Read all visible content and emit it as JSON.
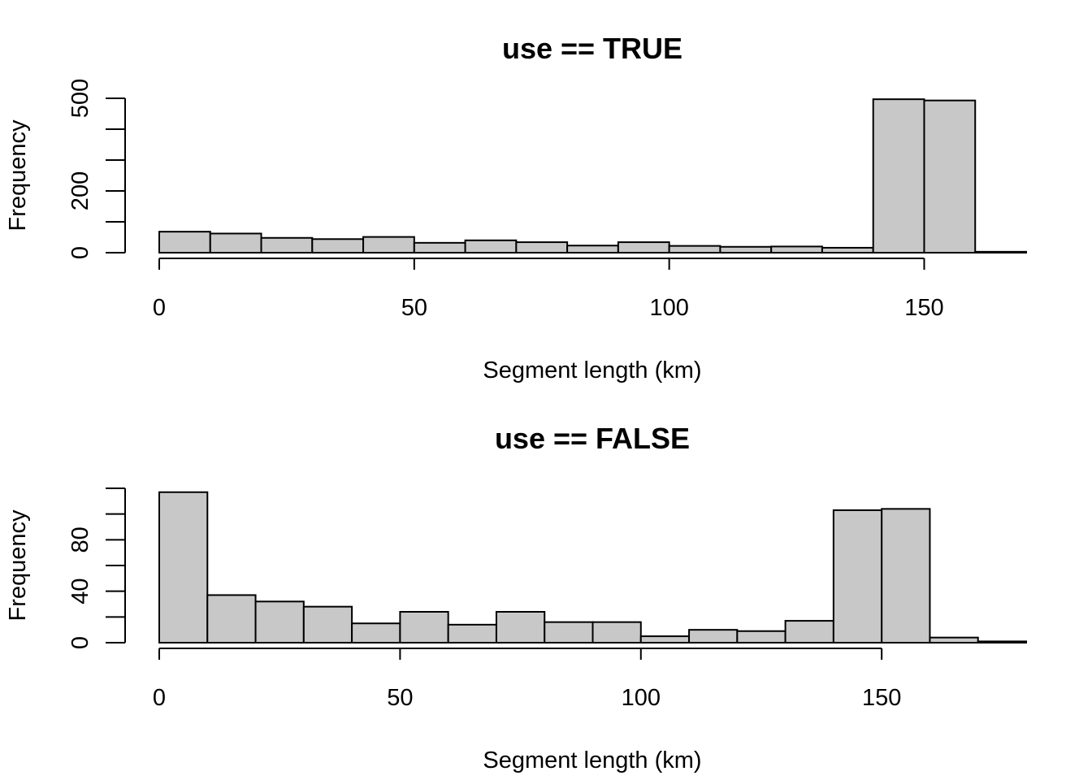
{
  "chart_data": [
    {
      "type": "bar",
      "title": "use == TRUE",
      "xlabel": "Segment length (km)",
      "ylabel": "Frequency",
      "bin_edges": [
        0,
        10,
        20,
        30,
        40,
        50,
        60,
        70,
        80,
        90,
        100,
        110,
        120,
        130,
        140,
        150,
        160,
        170
      ],
      "values": [
        68,
        62,
        48,
        44,
        51,
        32,
        40,
        34,
        23,
        34,
        22,
        19,
        20,
        16,
        497,
        493,
        3
      ],
      "xlim": [
        0,
        170
      ],
      "ylim": [
        0,
        500
      ],
      "x_ticks": [
        0,
        50,
        100,
        150
      ],
      "x_tick_labels": [
        "0",
        "50",
        "100",
        "150"
      ],
      "y_ticks": [
        0,
        100,
        200,
        300,
        400,
        500
      ],
      "y_tick_labels": [
        "0",
        "",
        "200",
        "",
        "",
        "500"
      ],
      "bar_color": "#c8c8c8",
      "grid": false
    },
    {
      "type": "bar",
      "title": "use == FALSE",
      "xlabel": "Segment length (km)",
      "ylabel": "Frequency",
      "bin_edges": [
        0,
        10,
        20,
        30,
        40,
        50,
        60,
        70,
        80,
        90,
        100,
        110,
        120,
        130,
        140,
        150,
        160,
        170,
        180
      ],
      "values": [
        117,
        37,
        32,
        28,
        15,
        24,
        14,
        24,
        16,
        16,
        5,
        10,
        9,
        17,
        103,
        104,
        4,
        1
      ],
      "xlim": [
        0,
        180
      ],
      "ylim": [
        0,
        120
      ],
      "x_ticks": [
        0,
        50,
        100,
        150
      ],
      "x_tick_labels": [
        "0",
        "50",
        "100",
        "150"
      ],
      "y_ticks": [
        0,
        20,
        40,
        60,
        80,
        100,
        120
      ],
      "y_tick_labels": [
        "0",
        "",
        "40",
        "",
        "80",
        "",
        ""
      ],
      "bar_color": "#c8c8c8",
      "grid": false
    }
  ]
}
